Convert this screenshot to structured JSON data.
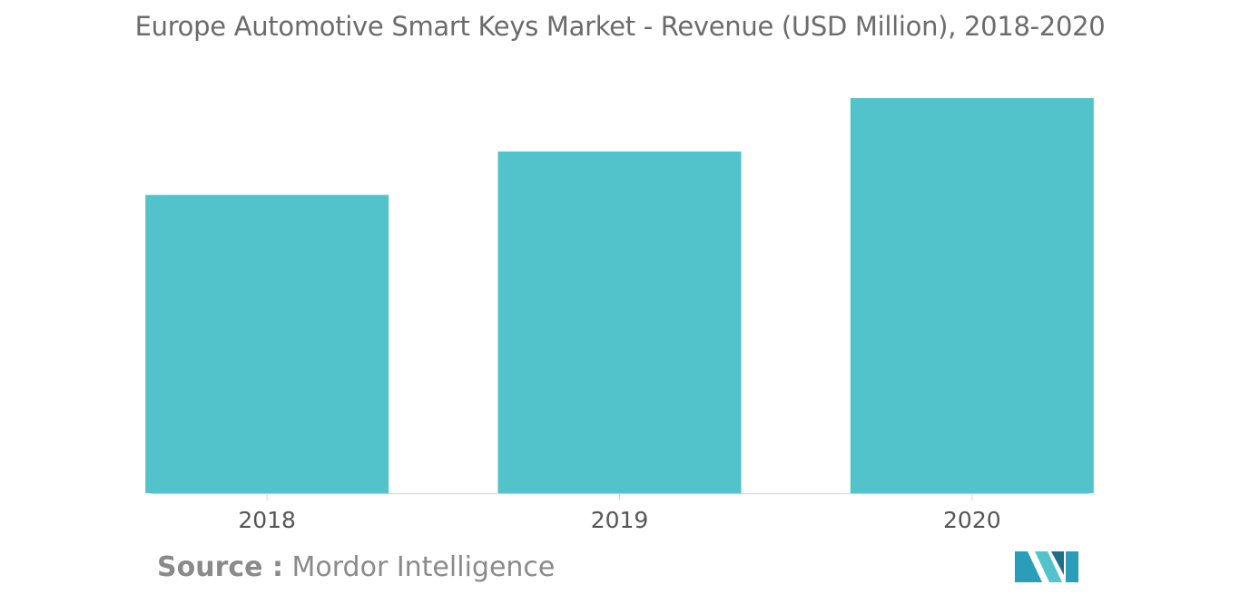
{
  "chart_data": {
    "type": "bar",
    "title": "Europe Automotive Smart Keys Market - Revenue (USD Million), 2018-2020",
    "categories": [
      "2018",
      "2019",
      "2020"
    ],
    "values": [
      75.5,
      86.5,
      100
    ],
    "xlabel": "",
    "ylabel": "",
    "ylim": [
      0,
      100
    ],
    "grid": false,
    "bar_color": "#52c3ca",
    "axis_color": "#d3d3d3"
  },
  "source": {
    "label": "Source :",
    "name": "Mordor Intelligence"
  },
  "logo": {
    "icon": "mordor-intelligence-logo-icon",
    "colors": [
      "#2a9db8",
      "#52c3ca",
      "#1d6f8a"
    ]
  }
}
